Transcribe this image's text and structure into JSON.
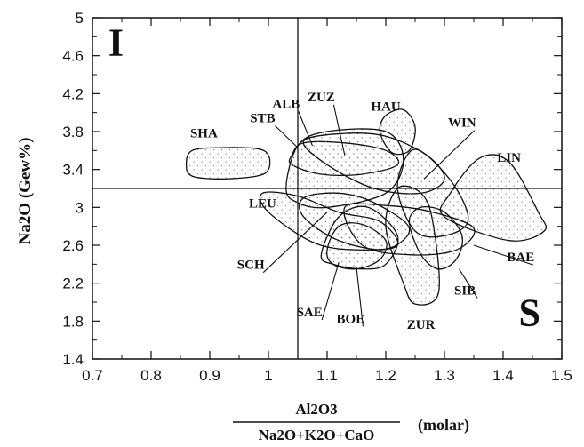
{
  "chart_data": {
    "type": "scatter",
    "title": "",
    "xlim": [
      0.7,
      1.5
    ],
    "ylim": [
      1.4,
      5.0
    ],
    "x_ticks": [
      "0.7",
      "0.8",
      "0.9",
      "1",
      "1.1",
      "1.2",
      "1.3",
      "1.4",
      "1.5"
    ],
    "y_ticks": [
      "1.4",
      "1.8",
      "2.2",
      "2.6",
      "3",
      "3.4",
      "3.8",
      "4.2",
      "4.6",
      "5"
    ],
    "xlabel": {
      "numerator": "Al2O3",
      "denominator": "Na2O+K2O+CaO",
      "unit": "(molar)"
    },
    "ylabel": "Na2O (Gew%)",
    "reference_lines": {
      "x": 1.05,
      "y": 3.2
    },
    "region_labels": [
      {
        "text": "I",
        "x": 0.74,
        "y": 4.6
      },
      {
        "text": "S",
        "x": 1.445,
        "y": 1.75
      }
    ],
    "fields": [
      {
        "name": "SHA",
        "label_at": [
          0.89,
          3.74
        ],
        "leader_to": null,
        "outline": [
          [
            0.86,
            3.45
          ],
          [
            0.87,
            3.6
          ],
          [
            0.92,
            3.63
          ],
          [
            0.98,
            3.62
          ],
          [
            1.0,
            3.55
          ],
          [
            1.0,
            3.4
          ],
          [
            0.98,
            3.33
          ],
          [
            0.92,
            3.3
          ],
          [
            0.87,
            3.33
          ]
        ]
      },
      {
        "name": "STB",
        "label_at": [
          0.99,
          3.9
        ],
        "leader_to": [
          1.05,
          3.63
        ],
        "outline": [
          [
            1.04,
            3.55
          ],
          [
            1.06,
            3.68
          ],
          [
            1.13,
            3.68
          ],
          [
            1.2,
            3.6
          ],
          [
            1.22,
            3.45
          ],
          [
            1.16,
            3.35
          ],
          [
            1.09,
            3.35
          ],
          [
            1.04,
            3.45
          ]
        ]
      },
      {
        "name": "ALB",
        "label_at": [
          1.03,
          4.05
        ],
        "leader_to": [
          1.075,
          3.65
        ],
        "outline": [
          [
            1.03,
            3.2
          ],
          [
            1.05,
            3.65
          ],
          [
            1.1,
            3.8
          ],
          [
            1.2,
            3.8
          ],
          [
            1.23,
            3.5
          ],
          [
            1.2,
            3.15
          ],
          [
            1.1,
            3.0
          ],
          [
            1.05,
            3.05
          ]
        ]
      },
      {
        "name": "ZUZ",
        "label_at": [
          1.09,
          4.12
        ],
        "leader_to": [
          1.13,
          3.55
        ],
        "outline": [
          [
            1.06,
            3.7
          ],
          [
            1.13,
            3.78
          ],
          [
            1.2,
            3.75
          ],
          [
            1.27,
            3.55
          ],
          [
            1.3,
            3.3
          ],
          [
            1.26,
            3.15
          ],
          [
            1.18,
            3.2
          ],
          [
            1.1,
            3.45
          ]
        ]
      },
      {
        "name": "HAU",
        "label_at": [
          1.2,
          4.02
        ],
        "leader_to": null,
        "outline": [
          [
            1.19,
            3.8
          ],
          [
            1.2,
            3.97
          ],
          [
            1.23,
            4.03
          ],
          [
            1.25,
            3.85
          ],
          [
            1.24,
            3.6
          ],
          [
            1.21,
            3.58
          ]
        ]
      },
      {
        "name": "WIN",
        "label_at": [
          1.33,
          3.85
        ],
        "leader_to": [
          1.265,
          3.3
        ],
        "outline": [
          [
            1.22,
            3.2
          ],
          [
            1.24,
            3.58
          ],
          [
            1.27,
            3.55
          ],
          [
            1.32,
            3.2
          ],
          [
            1.34,
            2.85
          ],
          [
            1.3,
            2.7
          ],
          [
            1.25,
            2.75
          ]
        ]
      },
      {
        "name": "LIN",
        "label_at": [
          1.41,
          3.48
        ],
        "leader_to": null,
        "outline": [
          [
            1.31,
            3.15
          ],
          [
            1.36,
            3.52
          ],
          [
            1.41,
            3.48
          ],
          [
            1.46,
            2.95
          ],
          [
            1.47,
            2.75
          ],
          [
            1.41,
            2.65
          ],
          [
            1.3,
            2.9
          ]
        ]
      },
      {
        "name": "LEU",
        "label_at": [
          0.99,
          3.0
        ],
        "leader_to": null,
        "outline": [
          [
            0.99,
            3.15
          ],
          [
            1.05,
            3.12
          ],
          [
            1.12,
            2.95
          ],
          [
            1.19,
            2.85
          ],
          [
            1.22,
            2.6
          ],
          [
            1.16,
            2.55
          ],
          [
            1.08,
            2.62
          ],
          [
            1.0,
            2.95
          ]
        ]
      },
      {
        "name": "SCH",
        "label_at": [
          0.97,
          2.35
        ],
        "leader_to": [
          1.1,
          2.95
        ],
        "outline": [
          [
            1.06,
            3.1
          ],
          [
            1.12,
            3.15
          ],
          [
            1.18,
            3.05
          ],
          [
            1.24,
            2.78
          ],
          [
            1.2,
            2.56
          ],
          [
            1.12,
            2.65
          ],
          [
            1.06,
            2.9
          ]
        ]
      },
      {
        "name": "BAE",
        "label_at": [
          1.43,
          2.43
        ],
        "leader_to": [
          1.35,
          2.6
        ],
        "outline": [
          [
            1.13,
            3.0
          ],
          [
            1.2,
            3.02
          ],
          [
            1.28,
            2.95
          ],
          [
            1.35,
            2.78
          ],
          [
            1.32,
            2.55
          ],
          [
            1.24,
            2.5
          ],
          [
            1.16,
            2.6
          ]
        ]
      },
      {
        "name": "SIB",
        "label_at": [
          1.335,
          2.08
        ],
        "leader_to": [
          1.325,
          2.35
        ],
        "outline": [
          [
            1.24,
            2.85
          ],
          [
            1.26,
            3.0
          ],
          [
            1.3,
            2.95
          ],
          [
            1.33,
            2.7
          ],
          [
            1.32,
            2.45
          ],
          [
            1.29,
            2.35
          ],
          [
            1.26,
            2.5
          ]
        ]
      },
      {
        "name": "SAE",
        "label_at": [
          1.07,
          1.85
        ],
        "leader_to": [
          1.12,
          2.42
        ],
        "outline": [
          [
            1.1,
            2.55
          ],
          [
            1.12,
            2.8
          ],
          [
            1.16,
            2.82
          ],
          [
            1.2,
            2.65
          ],
          [
            1.19,
            2.45
          ],
          [
            1.15,
            2.35
          ],
          [
            1.11,
            2.4
          ]
        ]
      },
      {
        "name": "BOE",
        "label_at": [
          1.14,
          1.78
        ],
        "leader_to": [
          1.15,
          2.37
        ],
        "outline": [
          [
            1.09,
            2.5
          ],
          [
            1.12,
            2.9
          ],
          [
            1.17,
            3.0
          ],
          [
            1.22,
            2.7
          ],
          [
            1.2,
            2.4
          ],
          [
            1.16,
            2.35
          ],
          [
            1.11,
            2.4
          ]
        ]
      },
      {
        "name": "ZUR",
        "label_at": [
          1.26,
          1.72
        ],
        "leader_to": null,
        "outline": [
          [
            1.2,
            2.8
          ],
          [
            1.22,
            3.2
          ],
          [
            1.26,
            3.15
          ],
          [
            1.28,
            2.85
          ],
          [
            1.29,
            2.1
          ],
          [
            1.25,
            1.98
          ],
          [
            1.23,
            2.2
          ]
        ]
      }
    ]
  }
}
